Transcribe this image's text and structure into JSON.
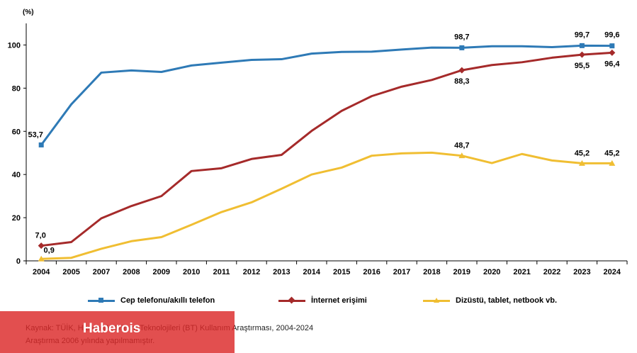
{
  "chart_data": {
    "type": "line",
    "unit": "(%)",
    "categories": [
      "2004",
      "2005",
      "2007",
      "2008",
      "2009",
      "2010",
      "2011",
      "2012",
      "2013",
      "2014",
      "2015",
      "2016",
      "2017",
      "2018",
      "2019",
      "2020",
      "2021",
      "2022",
      "2023",
      "2024"
    ],
    "ylim": [
      0,
      110
    ],
    "yticks": [
      0,
      20,
      40,
      60,
      80,
      100
    ],
    "grid": false,
    "legend_position": "bottom",
    "series": [
      {
        "name": "Cep telefonu/akıllı telefon",
        "color": "#2e7ab6",
        "marker": "square",
        "values": [
          53.7,
          72.5,
          87.2,
          88.2,
          87.5,
          90.5,
          91.8,
          93.1,
          93.4,
          96.0,
          96.8,
          96.9,
          97.9,
          98.8,
          98.7,
          99.4,
          99.4,
          99.0,
          99.7,
          99.6
        ],
        "labels": [
          {
            "index": 0,
            "text": "53,7"
          },
          {
            "index": 14,
            "text": "98,7"
          },
          {
            "index": 18,
            "text": "99,7"
          },
          {
            "index": 19,
            "text": "99,6"
          }
        ]
      },
      {
        "name": "İnternet erişimi",
        "color": "#a52a2a",
        "marker": "diamond",
        "values": [
          7.0,
          8.7,
          19.7,
          25.4,
          30.0,
          41.6,
          42.9,
          47.2,
          49.1,
          60.2,
          69.5,
          76.3,
          80.7,
          83.8,
          88.3,
          90.7,
          92.0,
          94.1,
          95.5,
          96.4
        ],
        "labels": [
          {
            "index": 0,
            "text": "7,0"
          },
          {
            "index": 14,
            "text": "88,3"
          },
          {
            "index": 18,
            "text": "95,5"
          },
          {
            "index": 19,
            "text": "96,4"
          }
        ]
      },
      {
        "name": "Dizüstü, tablet, netbook vb.",
        "color": "#f0be32",
        "marker": "triangle",
        "values": [
          0.9,
          1.4,
          5.6,
          9.1,
          11.0,
          16.7,
          22.6,
          27.1,
          33.4,
          40.0,
          43.2,
          48.7,
          49.8,
          50.1,
          48.7,
          45.3,
          49.5,
          46.5,
          45.2,
          45.2
        ],
        "labels": [
          {
            "index": 0,
            "text": "0,9"
          },
          {
            "index": 14,
            "text": "48,7"
          },
          {
            "index": 18,
            "text": "45,2"
          },
          {
            "index": 19,
            "text": "45,2"
          }
        ]
      }
    ]
  },
  "source": {
    "line1": "Kaynak: TÜİK, Hanehalkı Bilişim Teknolojileri (BT) Kullanım Araştırması, 2004-2024",
    "line2": "Araştırma 2006 yılında yapılmamıştır."
  },
  "watermark": {
    "text": "Haberois",
    "color": "#dc2828"
  }
}
